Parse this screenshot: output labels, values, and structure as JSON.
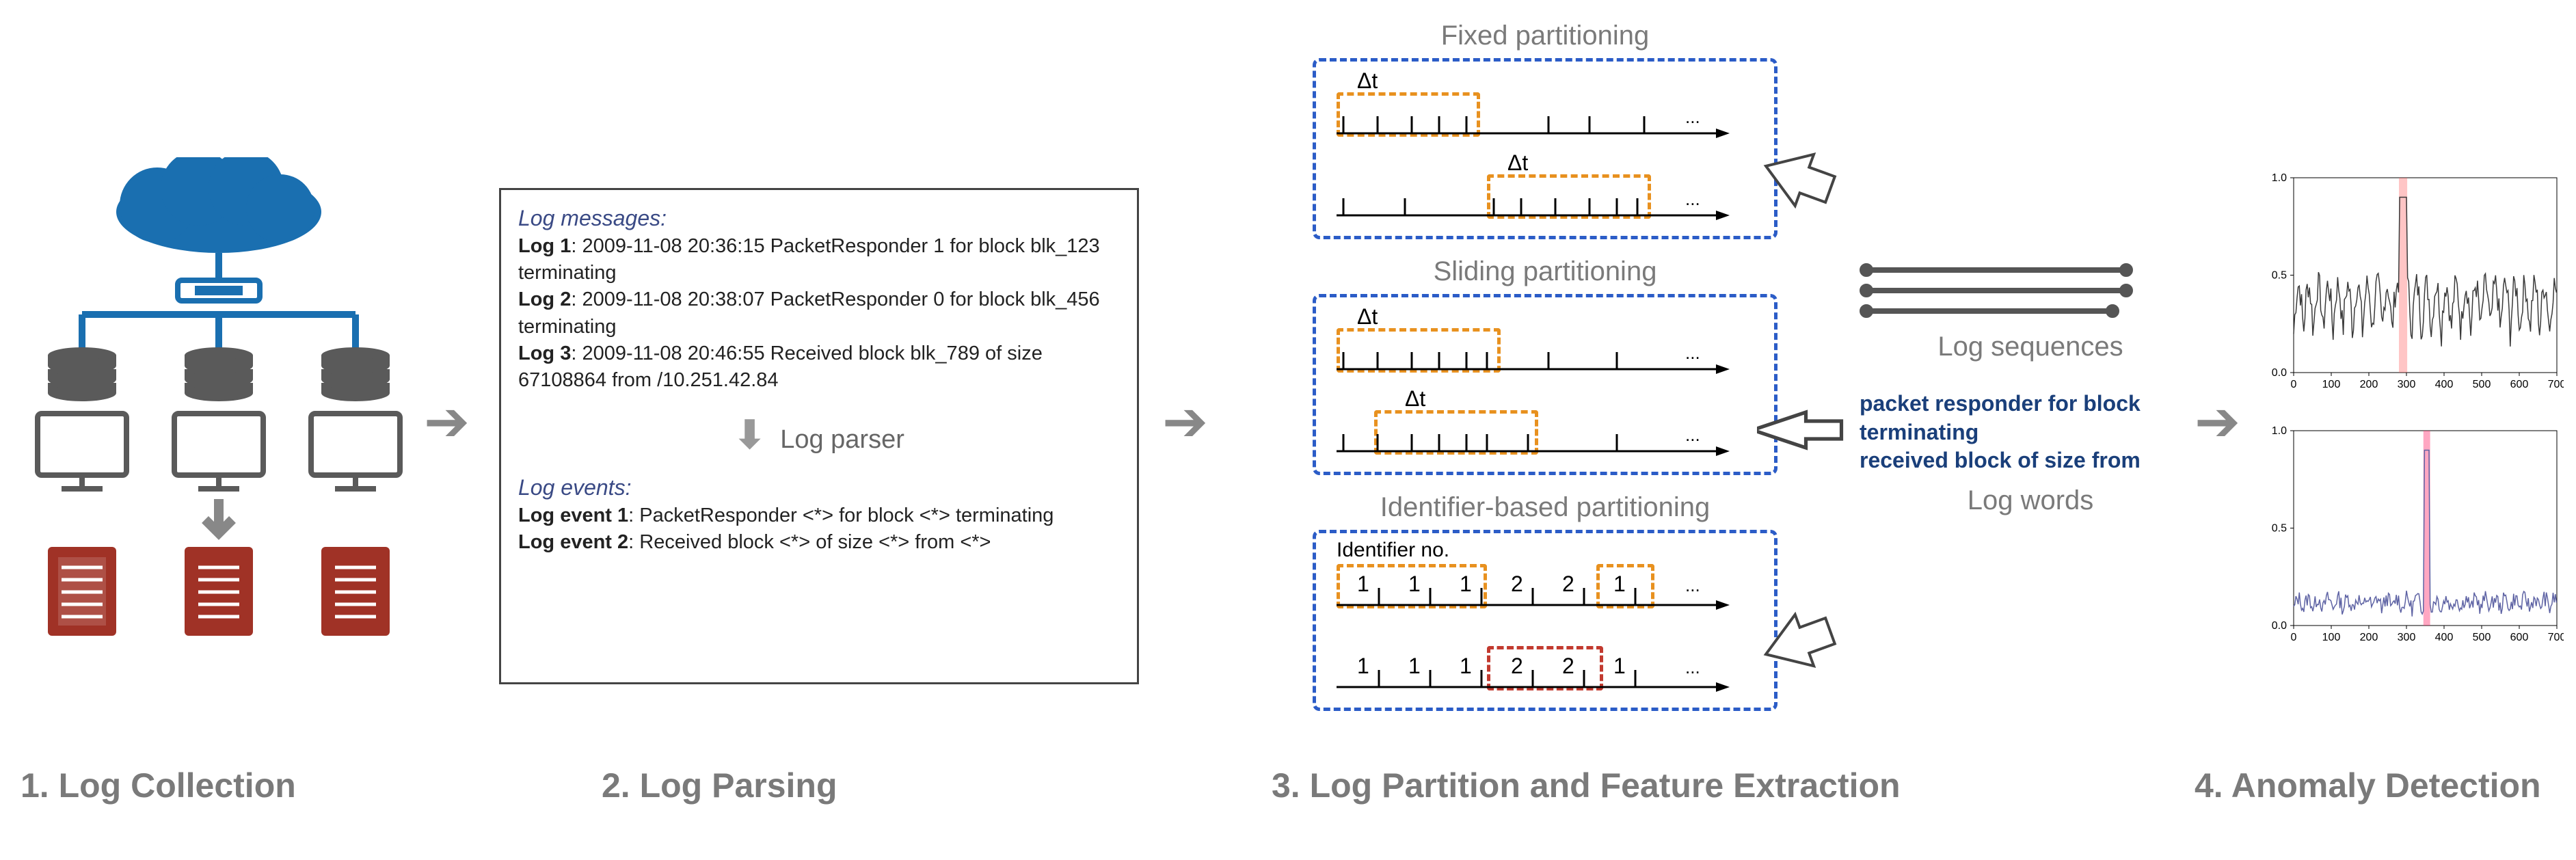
{
  "labels": {
    "s1": "1. Log Collection",
    "s2": "2. Log Parsing",
    "s3": "3. Log Partition and Feature Extraction",
    "s4": "4. Anomaly Detection",
    "fixed": "Fixed partitioning",
    "sliding": "Sliding partitioning",
    "ident": "Identifier-based partitioning",
    "identno": "Identifier no.",
    "dt": "Δt",
    "logseq": "Log sequences",
    "logwords": "Log words",
    "logparser": "Log parser",
    "words1": "packet responder for block",
    "words2": "terminating",
    "words3": "received block of size from"
  },
  "parsing": {
    "msghdr": "Log messages:",
    "evthdr": "Log events:",
    "l1b": "Log 1",
    "l1t": ": 2009-11-08 20:36:15 PacketResponder 1 for block blk_123 terminating",
    "l2b": "Log 2",
    "l2t": ": 2009-11-08 20:38:07 PacketResponder 0 for block blk_456 terminating",
    "l3b": "Log 3",
    "l3t": ": 2009-11-08 20:46:55 Received block blk_789 of size 67108864 from /10.251.42.84",
    "e1b": "Log event 1",
    "e1t": ": PacketResponder <*> for block <*> terminating",
    "e2b": "Log event 2",
    "e2t": ": Received block <*> of size <*> from <*>"
  },
  "ident_seq1": [
    "1",
    "1",
    "1",
    "2",
    "2",
    "1"
  ],
  "ident_seq2": [
    "1",
    "1",
    "1",
    "2",
    "2",
    "1"
  ],
  "colors": {
    "cloud": "#1a6fb0",
    "db": "#5a5a5a",
    "server": "#a03226",
    "blue_dash": "#2b5cc7",
    "orange": "#e8911f",
    "red": "#c23a2f",
    "text": "#7a7a7a",
    "words": "#1a3f7a"
  },
  "chart1": {
    "xlim": [
      0,
      700
    ],
    "ylim": [
      0,
      1.0
    ],
    "xticks": [
      0,
      100,
      200,
      300,
      400,
      500,
      600,
      700
    ],
    "yticks": [
      0,
      0.5,
      1.0
    ],
    "highlight_x": 280,
    "highlight_w": 22,
    "color": "#3a3a3a",
    "highlight_color": "rgba(255,90,90,0.35)"
  },
  "chart2": {
    "xlim": [
      0,
      700
    ],
    "ylim": [
      0,
      1.0
    ],
    "xticks": [
      0,
      100,
      200,
      300,
      400,
      500,
      600,
      700
    ],
    "yticks": [
      0,
      0.5,
      1.0
    ],
    "highlight_x": 345,
    "highlight_w": 18,
    "color": "#5e63a4",
    "highlight_color": "rgba(255,60,120,0.45)"
  }
}
